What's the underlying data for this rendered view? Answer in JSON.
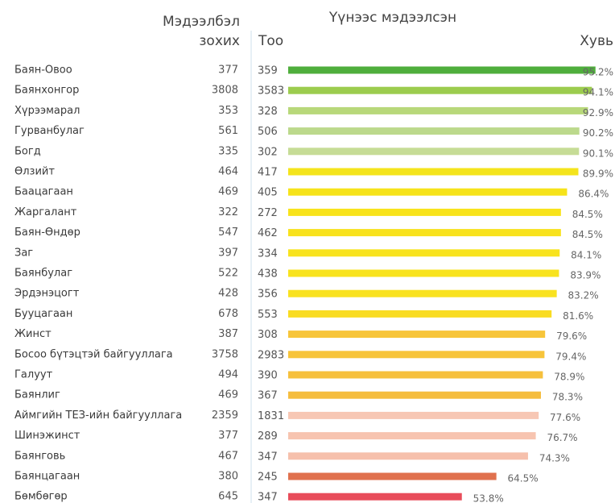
{
  "chart_data": {
    "type": "bar",
    "orientation": "horizontal",
    "title": "Үүнээс мэдээлсэн",
    "required_header": [
      "Мэдээлбэл",
      "зохих"
    ],
    "count_header": "Тоо",
    "percent_header": "Хувь",
    "categories": [
      "Баян-Овоо",
      "Баянхонгор",
      "Хүрээмарал",
      "Гурванбулаг",
      "Богд",
      "Өлзийт",
      "Баацагаан",
      "Жаргалант",
      "Баян-Өндөр",
      "Заг",
      "Баянбулаг",
      "Эрдэнэцогт",
      "Бууцагаан",
      "Жинст",
      "Босоо бүтэцтэй байгууллага",
      "Галуут",
      "Баянлиг",
      "Аймгийн ТЕЗ-ийн байгууллага",
      "Шинэжинст",
      "Баянговь",
      "Баянцагаан",
      "Бөмбөгөр"
    ],
    "required": [
      377,
      3808,
      353,
      561,
      335,
      464,
      469,
      322,
      547,
      397,
      522,
      428,
      678,
      387,
      3758,
      494,
      469,
      2359,
      377,
      467,
      380,
      645
    ],
    "counts": [
      359,
      3583,
      328,
      506,
      302,
      417,
      405,
      272,
      462,
      334,
      438,
      356,
      553,
      308,
      2983,
      390,
      367,
      1831,
      289,
      347,
      245,
      347
    ],
    "values": [
      95.2,
      94.1,
      92.9,
      90.2,
      90.1,
      89.9,
      86.4,
      84.5,
      84.5,
      84.1,
      83.9,
      83.2,
      81.6,
      79.6,
      79.4,
      78.9,
      78.3,
      77.6,
      76.7,
      74.3,
      64.5,
      53.8
    ],
    "value_labels": [
      "95.2%",
      "94.1%",
      "92.9%",
      "90.2%",
      "90.1%",
      "89.9%",
      "86.4%",
      "84.5%",
      "84.5%",
      "84.1%",
      "83.9%",
      "83.2%",
      "81.6%",
      "79.6%",
      "79.4%",
      "78.9%",
      "78.3%",
      "77.6%",
      "76.7%",
      "74.3%",
      "64.5%",
      "53.8%"
    ],
    "colors": [
      "#4fae3c",
      "#9ccc4e",
      "#b8d87a",
      "#bcd98c",
      "#c6dc96",
      "#f4e41c",
      "#f6e31a",
      "#f8e31a",
      "#f8e21c",
      "#f8e31e",
      "#f8e31e",
      "#f9e220",
      "#f9dc22",
      "#f7c53a",
      "#f7c43a",
      "#f6c03c",
      "#f5bd3e",
      "#f7c7b4",
      "#f7c4b0",
      "#f6c0ac",
      "#e0714e",
      "#e84c5a"
    ],
    "xlim": [
      0,
      100
    ]
  }
}
